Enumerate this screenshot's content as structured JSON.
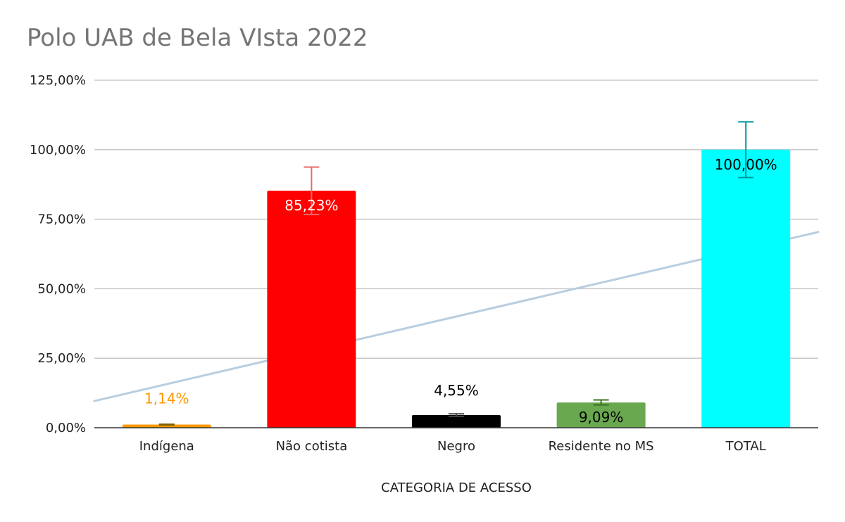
{
  "chart_data": {
    "type": "bar",
    "title": "Polo UAB de Bela VIsta 2022",
    "xlabel": "CATEGORIA DE ACESSO",
    "ylabel": "",
    "ylim": [
      0,
      125
    ],
    "yticks": [
      0,
      25,
      50,
      75,
      100,
      125
    ],
    "ytick_labels": [
      "0,00%",
      "25,00%",
      "50,00%",
      "75,00%",
      "100,00%",
      "125,00%"
    ],
    "grid": true,
    "legend": "none",
    "categories": [
      "Indígena",
      "Não cotista",
      "Negro",
      "Residente no MS",
      "TOTAL"
    ],
    "values": [
      1.14,
      85.23,
      4.55,
      9.09,
      100.0
    ],
    "value_labels": [
      "1,14%",
      "85,23%",
      "4,55%",
      "9,09%",
      "100,00%"
    ],
    "colors": [
      "#ff9900",
      "#ff0000",
      "#000000",
      "#6aa84f",
      "#00ffff"
    ],
    "label_colors": [
      "#ff9900",
      "#ffffff",
      "#000000",
      "#000000",
      "#000000"
    ],
    "label_position": [
      "above",
      "inside",
      "above",
      "inside",
      "inside"
    ],
    "error_bar_pct": 10,
    "error_bar_colors": [
      "#7f5f00",
      "#ea6a6a",
      "#444444",
      "#38761d",
      "#00999c"
    ],
    "trendline": {
      "type": "linear",
      "color": "#b8cde0"
    }
  }
}
